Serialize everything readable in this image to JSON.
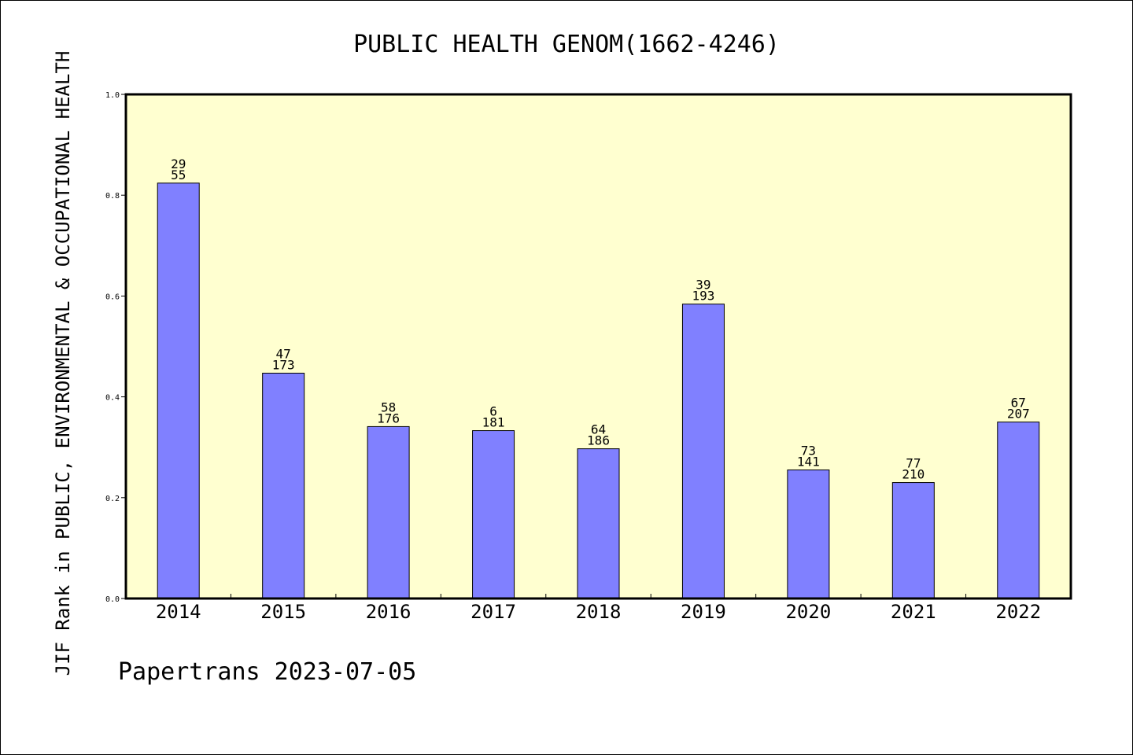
{
  "chart_data": {
    "type": "bar",
    "title": "PUBLIC HEALTH GENOM(1662-4246)",
    "ylabel": "JIF Rank in PUBLIC, ENVIRONMENTAL & OCCUPATIONAL HEALTH",
    "xlabel": "",
    "categories": [
      "2014",
      "2015",
      "2016",
      "2017",
      "2018",
      "2019",
      "2020",
      "2021",
      "2022"
    ],
    "values": [
      0.824,
      0.447,
      0.341,
      0.333,
      0.297,
      0.584,
      0.255,
      0.23,
      0.35
    ],
    "labels_top": [
      "29",
      "47",
      "58",
      "6",
      "64",
      "39",
      "73",
      "77",
      "67"
    ],
    "labels_bottom": [
      "55",
      "173",
      "176",
      "181",
      "186",
      "193",
      "141",
      "210",
      "207"
    ],
    "ylim": [
      0,
      1.0
    ],
    "yticks": [
      "0.0",
      "0.2",
      "0.4",
      "0.6",
      "0.8",
      "1.0"
    ],
    "grid": false,
    "colors": {
      "bar": "#8080ff",
      "plot_background": "#ffffd0"
    }
  },
  "footer": "Papertrans 2023-07-05"
}
